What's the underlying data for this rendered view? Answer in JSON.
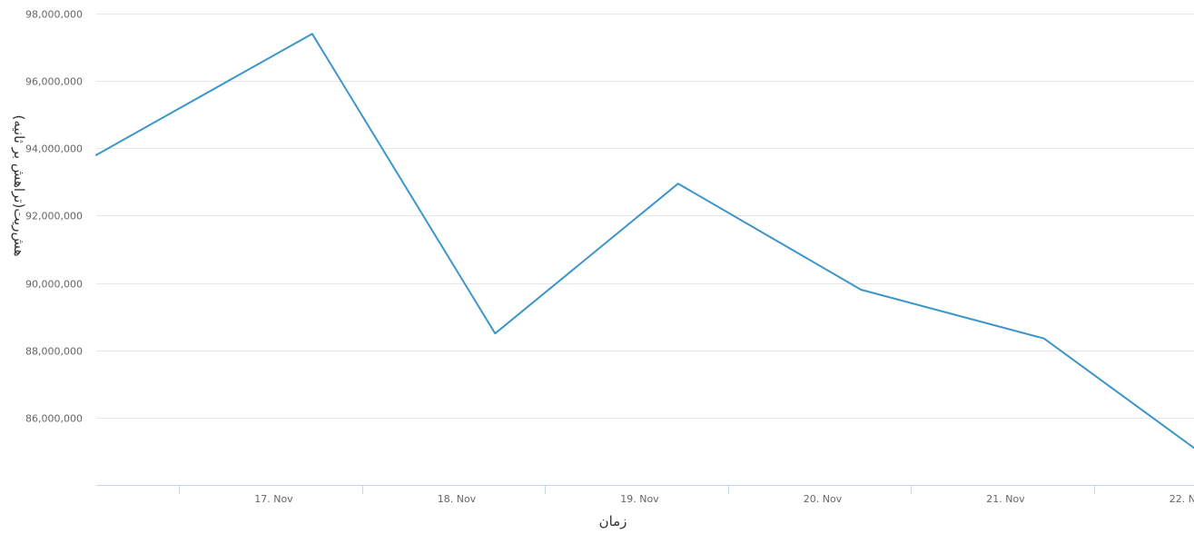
{
  "chart_data": {
    "type": "line",
    "title": "",
    "xlabel": "زمان",
    "ylabel": "هش‌ریت(تراهش بر ثانیه)",
    "x_tick_labels": [
      "17. Nov",
      "18. Nov",
      "19. Nov",
      "20. Nov",
      "21. Nov",
      "22. Nov"
    ],
    "y_tick_labels": [
      "86,000,000",
      "88,000,000",
      "90,000,000",
      "92,000,000",
      "94,000,000",
      "96,000,000",
      "98,000,000"
    ],
    "ylim": [
      84000000,
      98000000
    ],
    "xlim": [
      "2023-11-16",
      "2023-11-22"
    ],
    "grid": true,
    "legend": "none",
    "color": "#3d96c9",
    "series": [
      {
        "x": [
          "2023-11-16",
          "2023-11-17",
          "2023-11-18",
          "2023-11-19",
          "2023-11-20",
          "2023-11-21",
          "2023-11-22"
        ],
        "values": [
          93800000,
          97400000,
          88500000,
          92950000,
          89800000,
          88350000,
          85100000
        ]
      }
    ]
  }
}
